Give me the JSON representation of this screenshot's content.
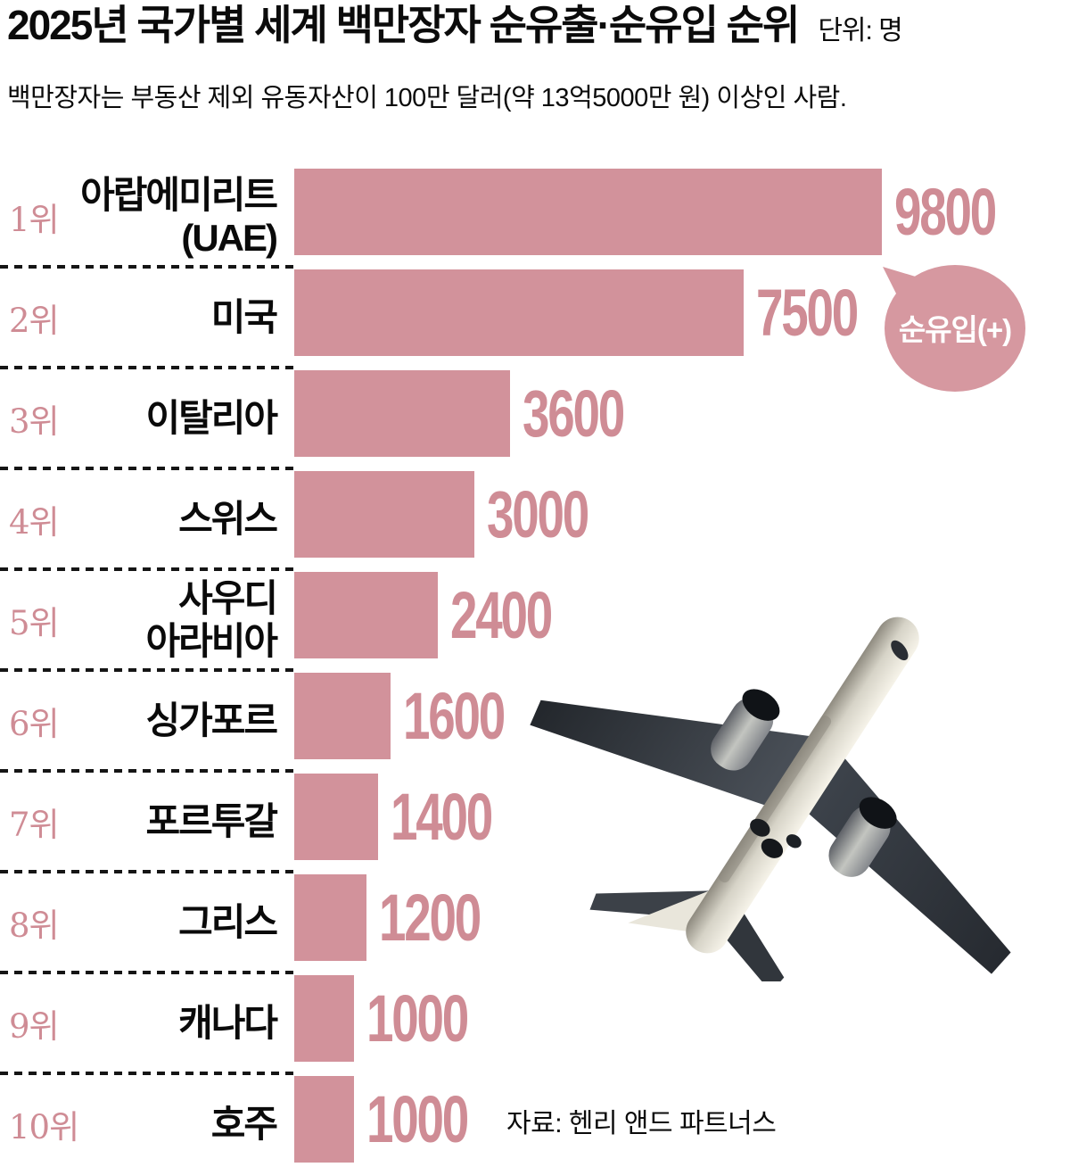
{
  "header": {
    "title": "2025년 국가별 세계 백만장자 순유출·순유입 순위",
    "unit": "단위: 명",
    "subtitle": "백만장자는 부동산 제외 유동자산이 100만 달러(약 13억5000만 원) 이상인 사람."
  },
  "bubble": {
    "label": "순유입(+)"
  },
  "source": "자료: 헨리 앤드 파트너스",
  "colors": {
    "bar_pink": "#d2929b",
    "number_pink": "#cf8c95",
    "bubble_pink": "#d698a0",
    "text_black": "#0b0b0b",
    "bubble_text_white": "#ffffff"
  },
  "chart_data": {
    "type": "bar",
    "orientation": "horizontal",
    "title": "2025년 국가별 세계 백만장자 순유출·순유입 순위",
    "unit": "명",
    "subtitle": "백만장자는 부동산 제외 유동자산이 100만 달러(약 13억5000만 원) 이상인 사람.",
    "annotation": "순유입(+)",
    "source": "자료: 헨리 앤드 파트너스",
    "xlim": [
      0,
      9800
    ],
    "grid": false,
    "legend": false,
    "categories": [
      "아랍에미리트 (UAE)",
      "미국",
      "이탈리아",
      "스위스",
      "사우디 아라비아",
      "싱가포르",
      "포르투갈",
      "그리스",
      "캐나다",
      "호주"
    ],
    "values": [
      9800,
      7500,
      3600,
      3000,
      2400,
      1600,
      1400,
      1200,
      1000,
      1000
    ],
    "rows": [
      {
        "rank": "1위",
        "line1": "아랍에미리트",
        "line2": "(UAE)",
        "value": 9800,
        "label": "9800"
      },
      {
        "rank": "2위",
        "line1": "미국",
        "line2": "",
        "value": 7500,
        "label": "7500"
      },
      {
        "rank": "3위",
        "line1": "이탈리아",
        "line2": "",
        "value": 3600,
        "label": "3600"
      },
      {
        "rank": "4위",
        "line1": "스위스",
        "line2": "",
        "value": 3000,
        "label": "3000"
      },
      {
        "rank": "5위",
        "line1": "사우디",
        "line2": "아라비아",
        "value": 2400,
        "label": "2400"
      },
      {
        "rank": "6위",
        "line1": "싱가포르",
        "line2": "",
        "value": 1600,
        "label": "1600"
      },
      {
        "rank": "7위",
        "line1": "포르투갈",
        "line2": "",
        "value": 1400,
        "label": "1400"
      },
      {
        "rank": "8위",
        "line1": "그리스",
        "line2": "",
        "value": 1200,
        "label": "1200"
      },
      {
        "rank": "9위",
        "line1": "캐나다",
        "line2": "",
        "value": 1000,
        "label": "1000"
      },
      {
        "rank": "10위",
        "line1": "호주",
        "line2": "",
        "value": 1000,
        "label": "1000"
      }
    ]
  }
}
